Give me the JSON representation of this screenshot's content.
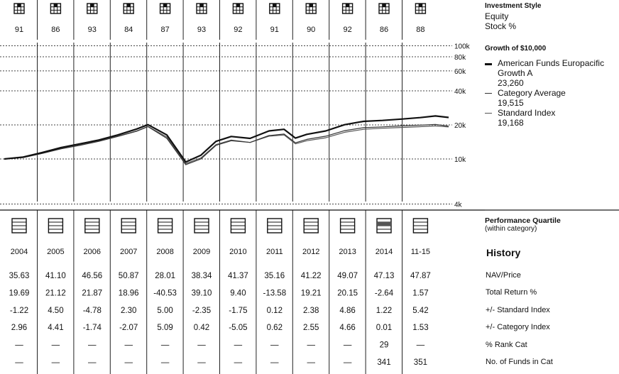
{
  "rating_numbers": [
    "91",
    "86",
    "93",
    "84",
    "87",
    "93",
    "92",
    "91",
    "90",
    "92",
    "86",
    "88"
  ],
  "years": [
    "2004",
    "2005",
    "2006",
    "2007",
    "2008",
    "2009",
    "2010",
    "2011",
    "2012",
    "2013",
    "2014",
    "11-15"
  ],
  "right_panel": {
    "style_title": "Investment Style",
    "style_line1": "Equity",
    "style_line2": "Stock %",
    "growth_title": "Growth of $10,000",
    "legend": [
      {
        "name_line1": "American Funds Europacific",
        "name_line2": "Growth A",
        "value": "23,260",
        "color": "#111111"
      },
      {
        "name_line1": "Category Average",
        "name_line2": "",
        "value": "19,515",
        "color": "#333333"
      },
      {
        "name_line1": "Standard Index",
        "name_line2": "",
        "value": "19,168",
        "color": "#555555"
      }
    ],
    "quartile_title": "Performance Quartile",
    "quartile_sub": "(within category)",
    "history_title": "History",
    "row_labels": [
      "NAV/Price",
      "Total Return %",
      "+/- Standard Index",
      "+/- Category Index",
      "% Rank Cat",
      "No. of Funds in Cat"
    ]
  },
  "table": {
    "nav": [
      "35.63",
      "41.10",
      "46.56",
      "50.87",
      "28.01",
      "38.34",
      "41.37",
      "35.16",
      "41.22",
      "49.07",
      "47.13",
      "47.87"
    ],
    "total_return": [
      "19.69",
      "21.12",
      "21.87",
      "18.96",
      "-40.53",
      "39.10",
      "9.40",
      "-13.58",
      "19.21",
      "20.15",
      "-2.64",
      "1.57"
    ],
    "vs_standard": [
      "-1.22",
      "4.50",
      "-4.78",
      "2.30",
      "5.00",
      "-2.35",
      "-1.75",
      "0.12",
      "2.38",
      "4.86",
      "1.22",
      "5.42"
    ],
    "vs_category": [
      "2.96",
      "4.41",
      "-1.74",
      "-2.07",
      "5.09",
      "0.42",
      "-5.05",
      "0.62",
      "2.55",
      "4.66",
      "0.01",
      "1.53"
    ],
    "rank_cat": [
      "—",
      "—",
      "—",
      "—",
      "—",
      "—",
      "—",
      "—",
      "—",
      "—",
      "29",
      "—"
    ],
    "num_funds": [
      "—",
      "—",
      "—",
      "—",
      "—",
      "—",
      "—",
      "—",
      "—",
      "—",
      "341",
      "351"
    ]
  },
  "chart_data": {
    "type": "line",
    "title": "Growth of $10,000",
    "y_scale": "log",
    "ylim": [
      4000,
      120000
    ],
    "yticks": [
      {
        "value": 100000,
        "label": "100k"
      },
      {
        "value": 80000,
        "label": "80k"
      },
      {
        "value": 60000,
        "label": "60k"
      },
      {
        "value": 40000,
        "label": "40k"
      },
      {
        "value": 20000,
        "label": "20k"
      },
      {
        "value": 10000,
        "label": "10k"
      },
      {
        "value": 4000,
        "label": "4k"
      }
    ],
    "x_range": [
      2004,
      2016
    ],
    "x": [
      2004.0,
      2004.5,
      2005.0,
      2005.5,
      2006.0,
      2006.5,
      2007.0,
      2007.5,
      2007.8,
      2008.3,
      2008.8,
      2009.2,
      2009.6,
      2010.0,
      2010.5,
      2011.0,
      2011.4,
      2011.7,
      2012.0,
      2012.5,
      2013.0,
      2013.5,
      2014.0,
      2014.5,
      2015.0,
      2015.4,
      2015.75
    ],
    "series": [
      {
        "name": "American Funds Europacific Growth A",
        "color": "#111111",
        "width": 2.2,
        "values": [
          10000,
          10400,
          11400,
          12600,
          13600,
          14700,
          16300,
          18400,
          20100,
          16300,
          9400,
          10800,
          14300,
          15800,
          15200,
          17700,
          18300,
          15300,
          16500,
          17700,
          20100,
          21500,
          21900,
          22500,
          23200,
          24000,
          23260
        ]
      },
      {
        "name": "Category Average",
        "color": "#333333",
        "width": 1.2,
        "values": [
          10000,
          10300,
          11200,
          12300,
          13200,
          14300,
          15800,
          17600,
          19300,
          15200,
          8900,
          10000,
          13200,
          14500,
          14000,
          16100,
          16600,
          13900,
          14900,
          15900,
          17800,
          18900,
          19200,
          19600,
          19900,
          20200,
          19515
        ]
      },
      {
        "name": "Standard Index",
        "color": "#555555",
        "width": 1.2,
        "values": [
          10000,
          10300,
          11200,
          12300,
          13300,
          14400,
          15900,
          17700,
          19400,
          15600,
          9100,
          10200,
          13400,
          14700,
          14000,
          15900,
          16300,
          13600,
          14500,
          15400,
          17200,
          18300,
          18700,
          19000,
          19300,
          19600,
          19168
        ]
      }
    ],
    "gridlines": true
  }
}
